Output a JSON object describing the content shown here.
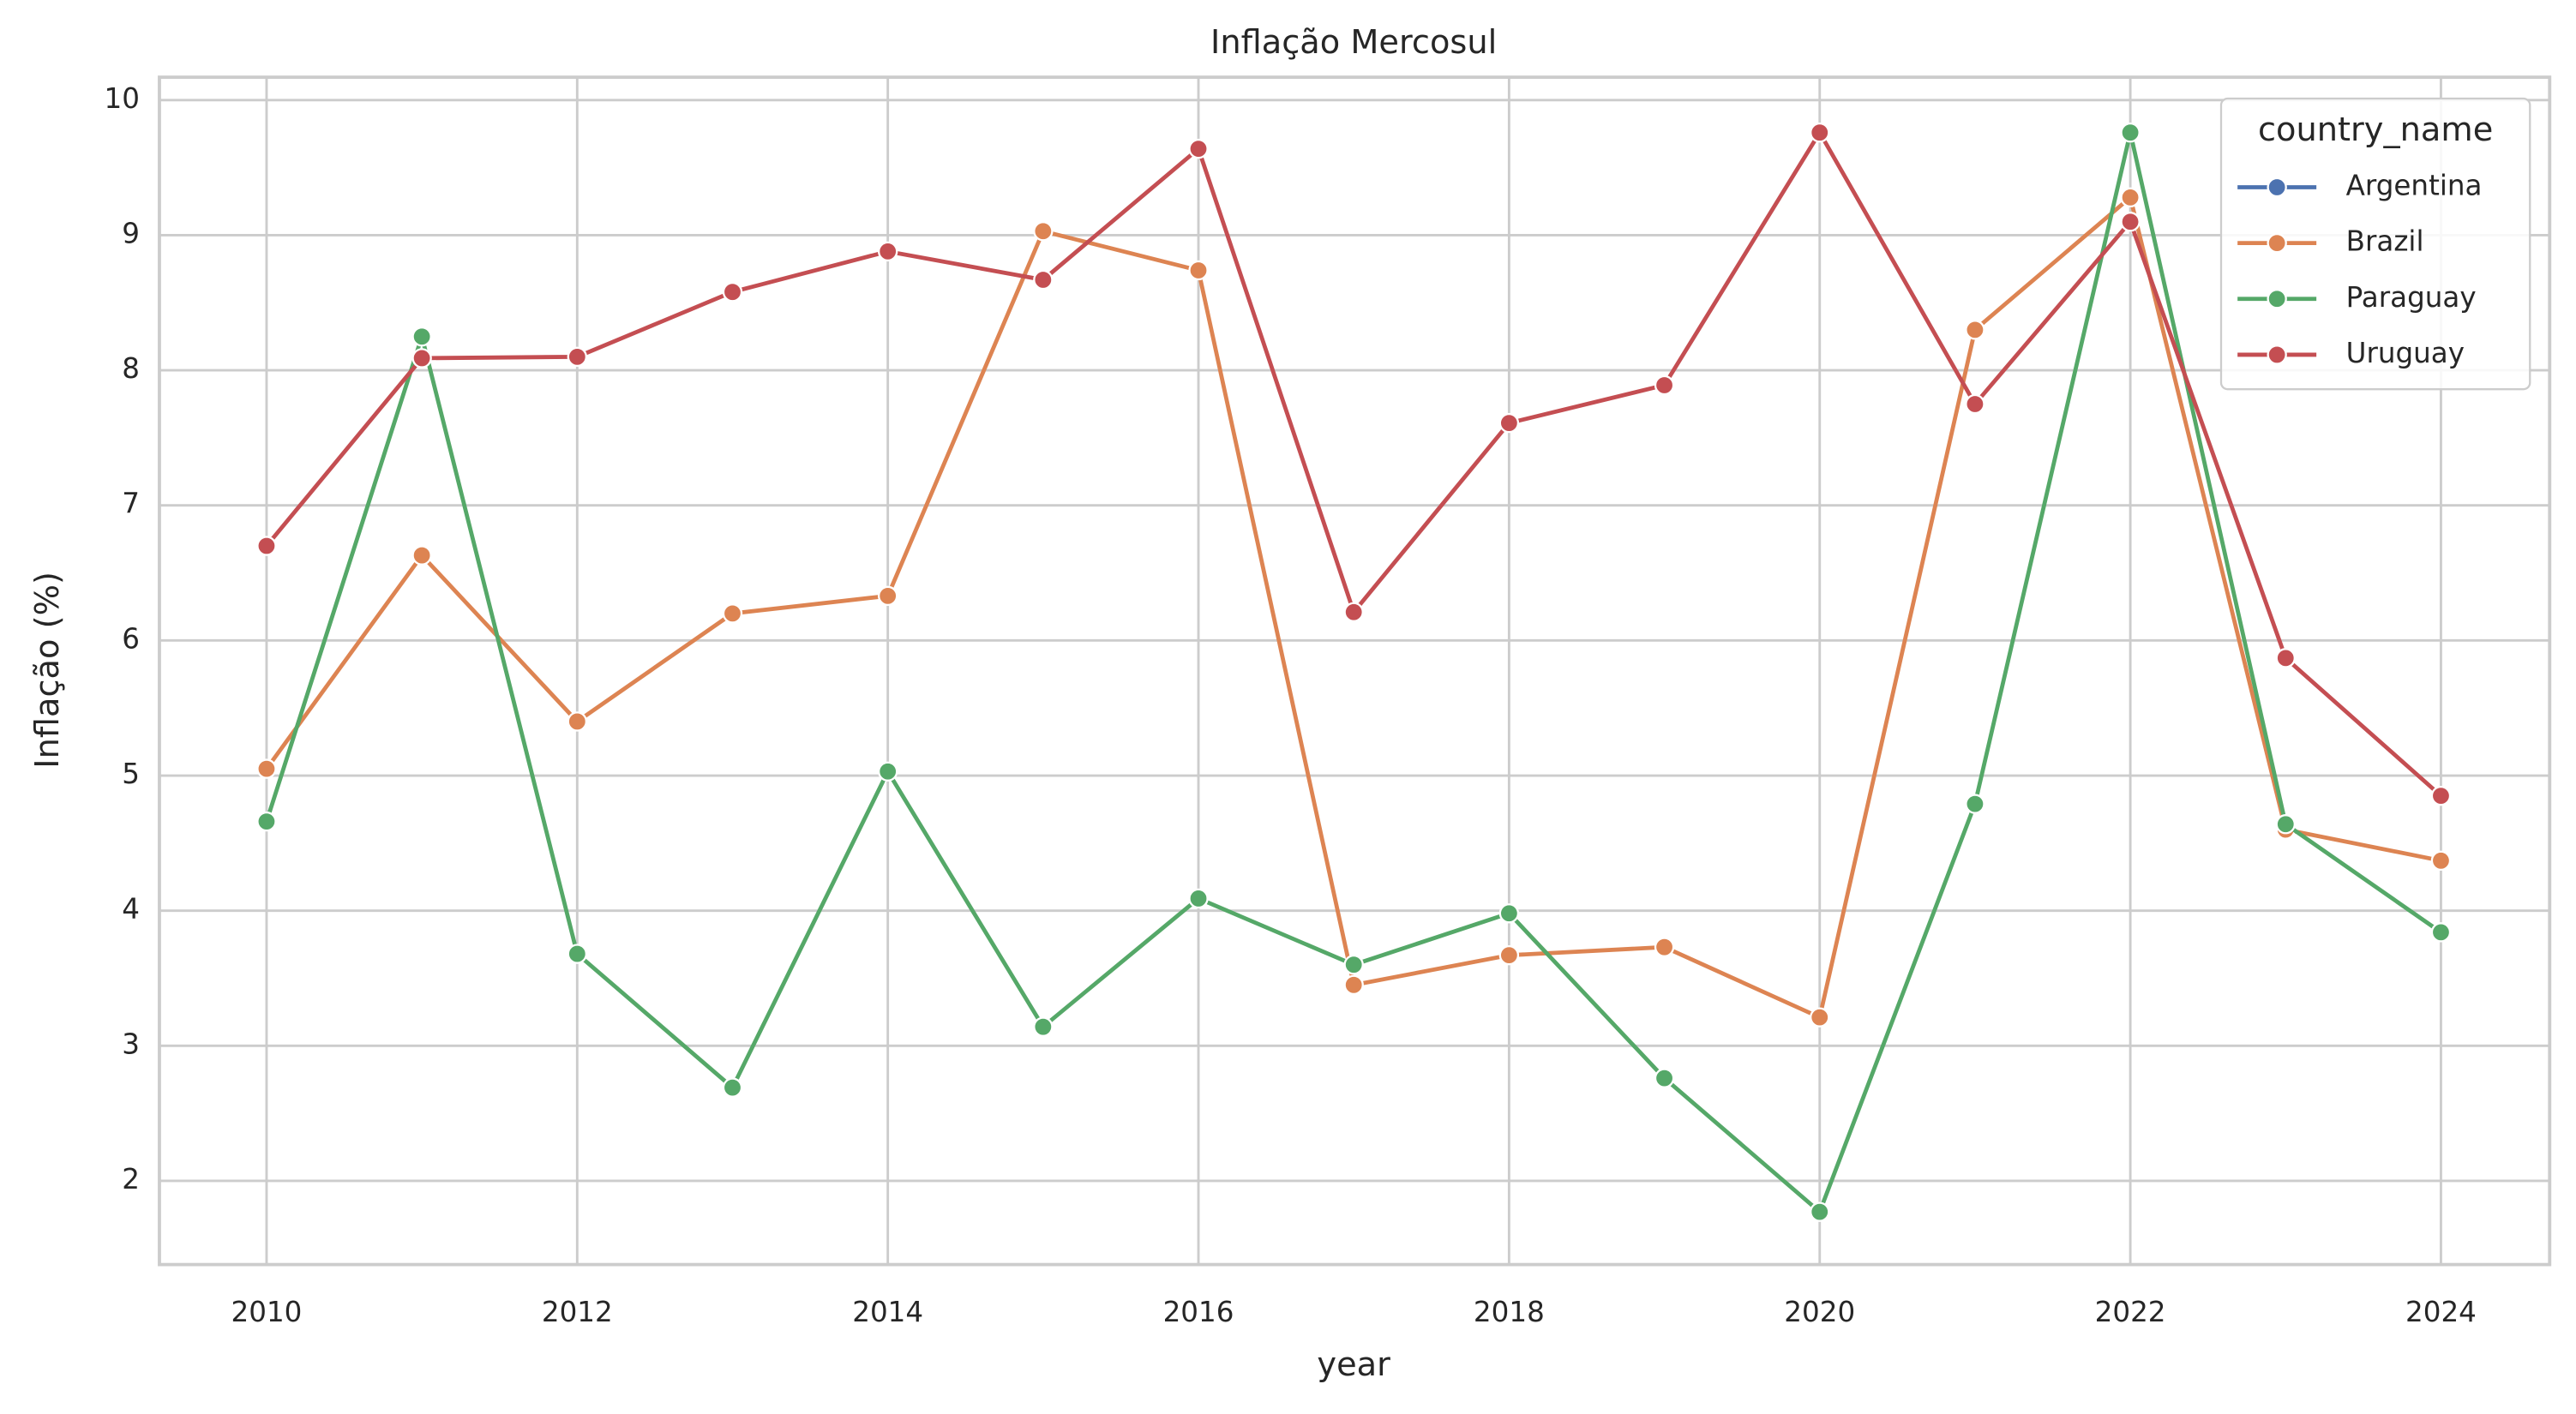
{
  "chart_data": {
    "type": "line",
    "title": "Inflação Mercosul",
    "x_label": "year",
    "y_label": "Inflação (%)",
    "x": [
      2010,
      2011,
      2012,
      2013,
      2014,
      2015,
      2016,
      2017,
      2018,
      2019,
      2020,
      2021,
      2022,
      2023,
      2024
    ],
    "series": [
      {
        "name": "Argentina",
        "color": "#4c72b0",
        "values": [
          null,
          null,
          null,
          null,
          null,
          null,
          null,
          null,
          null,
          null,
          null,
          null,
          null,
          null,
          null
        ]
      },
      {
        "name": "Brazil",
        "color": "#dd8452",
        "values": [
          5.05,
          6.63,
          5.4,
          6.2,
          6.33,
          9.03,
          8.74,
          3.45,
          3.67,
          3.73,
          3.21,
          8.3,
          9.28,
          4.6,
          4.37
        ]
      },
      {
        "name": "Paraguay",
        "color": "#55a868",
        "values": [
          4.66,
          8.25,
          3.68,
          2.69,
          5.03,
          3.14,
          4.09,
          3.6,
          3.98,
          2.76,
          1.77,
          4.79,
          9.76,
          4.64,
          3.84
        ]
      },
      {
        "name": "Uruguay",
        "color": "#c44e52",
        "values": [
          6.7,
          8.09,
          8.1,
          8.58,
          8.88,
          8.67,
          9.64,
          6.21,
          7.61,
          7.89,
          9.76,
          7.75,
          9.1,
          5.87,
          4.85
        ]
      }
    ],
    "xlim": [
      2009.31,
      2024.7
    ],
    "ylim": [
      1.38,
      10.17
    ],
    "xticks": [
      2010,
      2012,
      2014,
      2016,
      2018,
      2020,
      2022,
      2024
    ],
    "yticks": [
      2,
      3,
      4,
      5,
      6,
      7,
      8,
      9,
      10
    ],
    "grid": true,
    "legend_title": "country_name",
    "legend_position": "upper right"
  }
}
